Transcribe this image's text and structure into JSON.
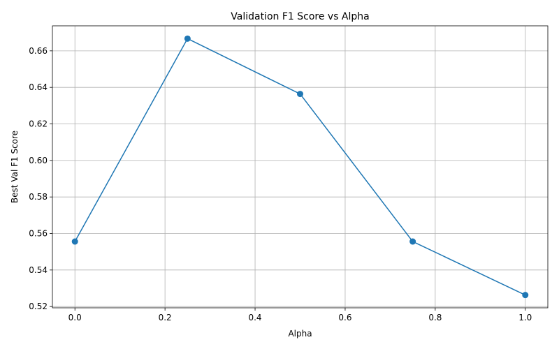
{
  "chart_data": {
    "type": "line",
    "title": "Validation F1 Score vs Alpha",
    "xlabel": "Alpha",
    "ylabel": "Best Val F1 Score",
    "x": [
      0.0,
      0.25,
      0.5,
      0.75,
      1.0
    ],
    "y": [
      0.5556,
      0.6667,
      0.6364,
      0.5556,
      0.5263
    ],
    "xlim": [
      -0.05,
      1.05
    ],
    "ylim": [
      0.5193,
      0.6737
    ],
    "x_ticks": [
      "0.0",
      "0.2",
      "0.4",
      "0.6",
      "0.8",
      "1.0"
    ],
    "y_ticks": [
      "0.52",
      "0.54",
      "0.56",
      "0.58",
      "0.60",
      "0.62",
      "0.64",
      "0.66"
    ],
    "grid": true,
    "marker": "circle",
    "line_color": "#1f77b4",
    "grid_color": "#b0b0b0"
  }
}
